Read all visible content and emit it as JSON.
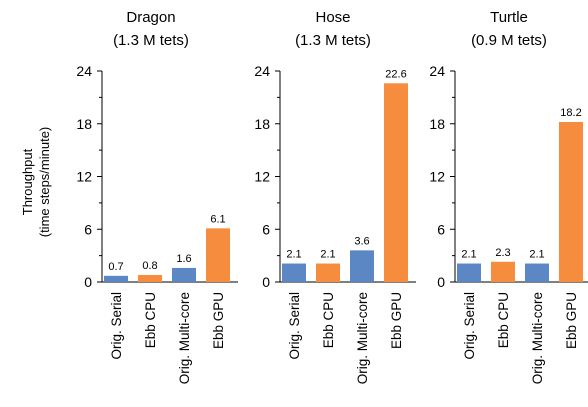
{
  "colors": {
    "serial": "#5b87c4",
    "cpu": "#f68c3e",
    "multicore": "#5b87c4",
    "gpu": "#f68c3e"
  },
  "chart_data": {
    "type": "bar",
    "ylabel": "Throughput",
    "ylabel_sub": "(time steps/minute)",
    "ylim": [
      0,
      24
    ],
    "yticks": [
      0,
      6,
      12,
      18,
      24
    ],
    "grid": false,
    "categories": [
      "Orig. Serial",
      "Ebb CPU",
      "Orig. Multi-core",
      "Ebb GPU"
    ],
    "panels": [
      {
        "title": "Dragon",
        "subtitle": "(1.3 M tets)",
        "values": [
          0.7,
          0.8,
          1.6,
          6.1
        ]
      },
      {
        "title": "Hose",
        "subtitle": "(1.3 M tets)",
        "values": [
          2.1,
          2.1,
          3.6,
          22.6
        ]
      },
      {
        "title": "Turtle",
        "subtitle": "(0.9 M tets)",
        "values": [
          2.1,
          2.3,
          2.1,
          18.2
        ]
      }
    ]
  }
}
